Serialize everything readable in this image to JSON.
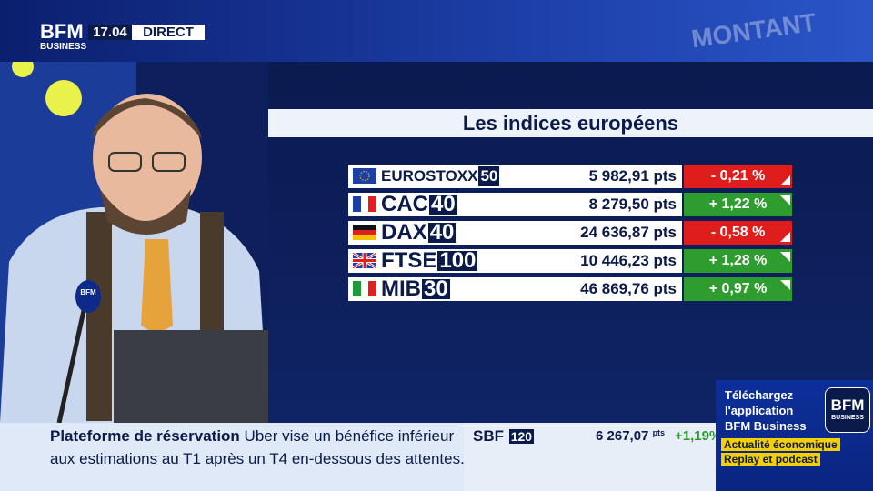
{
  "header": {
    "logo": "BFM",
    "logo_sub": "BUSINESS",
    "time": "17.04",
    "live": "DIRECT",
    "backdrop": "MONTANT"
  },
  "panel": {
    "title": "Les indices européens",
    "rows": [
      {
        "flag": "eu",
        "name": "EUROSTOXX",
        "suffix": "50",
        "value": "5 982,91 pts",
        "change": "- 0,21 %",
        "direction": "down"
      },
      {
        "flag": "fr",
        "name": "CAC",
        "suffix": "40",
        "value": "8 279,50 pts",
        "change": "+ 1,22 %",
        "direction": "up"
      },
      {
        "flag": "de",
        "name": "DAX",
        "suffix": "40",
        "value": "24 636,87 pts",
        "change": "- 0,58 %",
        "direction": "down"
      },
      {
        "flag": "gb",
        "name": "FTSE",
        "suffix": "100",
        "value": "10 446,23 pts",
        "change": "+ 1,28 %",
        "direction": "up"
      },
      {
        "flag": "it",
        "name": "MIB",
        "suffix": "30",
        "value": "46 869,76 pts",
        "change": "+ 0,97 %",
        "direction": "up"
      }
    ]
  },
  "ticker": {
    "label": "Plateforme de réservation",
    "line1": "Uber vise un bénéfice inférieur",
    "line2": "aux estimations au T1 après un T4 en-dessous des attentes."
  },
  "market": {
    "name": "SBF",
    "suffix": "120",
    "value": "6 267,07",
    "unit": "pts",
    "change": "+1,19%"
  },
  "promo": {
    "line1": "Téléchargez",
    "line2": "l'application",
    "line3": "BFM Business",
    "tag1": "Actualité économique",
    "tag2": "Replay et podcast",
    "logo": "BFM",
    "logo_sub": "BUSINESS"
  },
  "microphone": {
    "label": "BFM"
  }
}
